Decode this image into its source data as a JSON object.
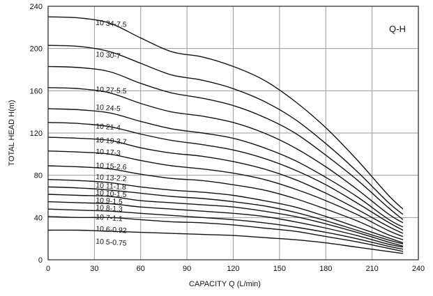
{
  "chart_data": {
    "type": "line",
    "title": "",
    "corner_label": "Q-H",
    "xlabel": "CAPACITY  Q (L/min)",
    "ylabel": "TOTAL HEAD  H(m)",
    "xlim": [
      0,
      240
    ],
    "ylim": [
      0,
      240
    ],
    "x_ticks": [
      "0",
      "30",
      "60",
      "90",
      "120",
      "150",
      "180",
      "210",
      "240"
    ],
    "y_ticks": [
      "0",
      "40",
      "80",
      "120",
      "160",
      "200",
      "240"
    ],
    "grid": true,
    "series": [
      {
        "name": "10 34-7.5",
        "label_at": [
          30,
          225
        ],
        "points": [
          [
            0,
            230
          ],
          [
            20,
            229
          ],
          [
            40,
            224
          ],
          [
            60,
            210
          ],
          [
            80,
            197
          ],
          [
            100,
            192
          ],
          [
            120,
            183
          ],
          [
            140,
            170
          ],
          [
            160,
            150
          ],
          [
            180,
            125
          ],
          [
            200,
            95
          ],
          [
            220,
            62
          ],
          [
            230,
            48
          ]
        ]
      },
      {
        "name": "10 30-7",
        "label_at": [
          30,
          195
        ],
        "points": [
          [
            0,
            203
          ],
          [
            20,
            202
          ],
          [
            40,
            197
          ],
          [
            60,
            186
          ],
          [
            80,
            175
          ],
          [
            100,
            170
          ],
          [
            120,
            162
          ],
          [
            140,
            150
          ],
          [
            160,
            133
          ],
          [
            180,
            110
          ],
          [
            200,
            84
          ],
          [
            220,
            55
          ],
          [
            230,
            43
          ]
        ]
      },
      {
        "name": "10 27-5.5",
        "label_at": [
          30,
          162
        ],
        "points": [
          [
            0,
            183
          ],
          [
            20,
            182
          ],
          [
            40,
            178
          ],
          [
            60,
            167
          ],
          [
            80,
            158
          ],
          [
            100,
            153
          ],
          [
            120,
            146
          ],
          [
            140,
            135
          ],
          [
            160,
            120
          ],
          [
            180,
            99
          ],
          [
            200,
            76
          ],
          [
            220,
            50
          ],
          [
            230,
            38
          ]
        ]
      },
      {
        "name": "10 24-5",
        "label_at": [
          30,
          145
        ],
        "points": [
          [
            0,
            163
          ],
          [
            20,
            162
          ],
          [
            40,
            158
          ],
          [
            60,
            148
          ],
          [
            80,
            140
          ],
          [
            100,
            136
          ],
          [
            120,
            130
          ],
          [
            140,
            120
          ],
          [
            160,
            106
          ],
          [
            180,
            88
          ],
          [
            200,
            67
          ],
          [
            220,
            44
          ],
          [
            230,
            35
          ]
        ]
      },
      {
        "name": "10 21-4",
        "label_at": [
          30,
          127
        ],
        "points": [
          [
            0,
            143
          ],
          [
            20,
            142
          ],
          [
            40,
            139
          ],
          [
            60,
            131
          ],
          [
            80,
            124
          ],
          [
            100,
            120
          ],
          [
            120,
            115
          ],
          [
            140,
            106
          ],
          [
            160,
            94
          ],
          [
            180,
            78
          ],
          [
            200,
            60
          ],
          [
            220,
            39
          ],
          [
            230,
            31
          ]
        ]
      },
      {
        "name": "10 19-3.7",
        "label_at": [
          30,
          114
        ],
        "points": [
          [
            0,
            130
          ],
          [
            20,
            129
          ],
          [
            40,
            126
          ],
          [
            60,
            119
          ],
          [
            80,
            113
          ],
          [
            100,
            109
          ],
          [
            120,
            104
          ],
          [
            140,
            96
          ],
          [
            160,
            85
          ],
          [
            180,
            71
          ],
          [
            200,
            54
          ],
          [
            220,
            36
          ],
          [
            230,
            28
          ]
        ]
      },
      {
        "name": "10 17-3",
        "label_at": [
          30,
          103
        ],
        "points": [
          [
            0,
            116
          ],
          [
            20,
            115
          ],
          [
            40,
            113
          ],
          [
            60,
            106
          ],
          [
            80,
            101
          ],
          [
            100,
            98
          ],
          [
            120,
            93
          ],
          [
            140,
            86
          ],
          [
            160,
            76
          ],
          [
            180,
            63
          ],
          [
            200,
            48
          ],
          [
            220,
            32
          ],
          [
            230,
            25
          ]
        ]
      },
      {
        "name": "10 15-2.6",
        "label_at": [
          30,
          90
        ],
        "points": [
          [
            0,
            103
          ],
          [
            20,
            102
          ],
          [
            40,
            100
          ],
          [
            60,
            94
          ],
          [
            80,
            89
          ],
          [
            100,
            86
          ],
          [
            120,
            82
          ],
          [
            140,
            76
          ],
          [
            160,
            67
          ],
          [
            180,
            56
          ],
          [
            200,
            43
          ],
          [
            220,
            28
          ],
          [
            230,
            22
          ]
        ]
      },
      {
        "name": "10 13-2.2",
        "label_at": [
          30,
          79
        ],
        "points": [
          [
            0,
            89
          ],
          [
            20,
            88
          ],
          [
            40,
            86
          ],
          [
            60,
            81
          ],
          [
            80,
            77
          ],
          [
            100,
            75
          ],
          [
            120,
            71
          ],
          [
            140,
            66
          ],
          [
            160,
            58
          ],
          [
            180,
            48
          ],
          [
            200,
            37
          ],
          [
            220,
            24
          ],
          [
            230,
            19
          ]
        ]
      },
      {
        "name": "10 11-1.8",
        "label_at": [
          30,
          71
        ],
        "points": [
          [
            0,
            76
          ],
          [
            20,
            75
          ],
          [
            40,
            73
          ],
          [
            60,
            69
          ],
          [
            80,
            66
          ],
          [
            100,
            64
          ],
          [
            120,
            61
          ],
          [
            140,
            56
          ],
          [
            160,
            50
          ],
          [
            180,
            41
          ],
          [
            200,
            31
          ],
          [
            220,
            21
          ],
          [
            230,
            16
          ]
        ]
      },
      {
        "name": "10 10-1.5",
        "label_at": [
          30,
          64
        ],
        "points": [
          [
            0,
            69
          ],
          [
            20,
            68
          ],
          [
            40,
            66
          ],
          [
            60,
            63
          ],
          [
            80,
            60
          ],
          [
            100,
            58
          ],
          [
            120,
            55
          ],
          [
            140,
            51
          ],
          [
            160,
            45
          ],
          [
            180,
            37
          ],
          [
            200,
            28
          ],
          [
            220,
            19
          ],
          [
            230,
            15
          ]
        ]
      },
      {
        "name": "10 9-1.5",
        "label_at": [
          30,
          57
        ],
        "points": [
          [
            0,
            62
          ],
          [
            20,
            61
          ],
          [
            40,
            60
          ],
          [
            60,
            56
          ],
          [
            80,
            54
          ],
          [
            100,
            52
          ],
          [
            120,
            50
          ],
          [
            140,
            46
          ],
          [
            160,
            41
          ],
          [
            180,
            34
          ],
          [
            200,
            26
          ],
          [
            220,
            17
          ],
          [
            230,
            13
          ]
        ]
      },
      {
        "name": "10 8-1.3",
        "label_at": [
          30,
          50
        ],
        "points": [
          [
            0,
            55
          ],
          [
            20,
            54
          ],
          [
            40,
            53
          ],
          [
            60,
            50
          ],
          [
            80,
            48
          ],
          [
            100,
            46
          ],
          [
            120,
            44
          ],
          [
            140,
            41
          ],
          [
            160,
            36
          ],
          [
            180,
            30
          ],
          [
            200,
            23
          ],
          [
            220,
            15
          ],
          [
            230,
            12
          ]
        ]
      },
      {
        "name": "10 7-1.1",
        "label_at": [
          30,
          41
        ],
        "points": [
          [
            0,
            48
          ],
          [
            20,
            47
          ],
          [
            40,
            46
          ],
          [
            60,
            44
          ],
          [
            80,
            42
          ],
          [
            100,
            40
          ],
          [
            120,
            38
          ],
          [
            140,
            35
          ],
          [
            160,
            31
          ],
          [
            180,
            26
          ],
          [
            200,
            20
          ],
          [
            220,
            13
          ],
          [
            230,
            10
          ]
        ]
      },
      {
        "name": "10 6-0.92",
        "label_at": [
          30,
          30
        ],
        "points": [
          [
            0,
            41
          ],
          [
            20,
            40
          ],
          [
            40,
            40
          ],
          [
            60,
            38
          ],
          [
            80,
            36
          ],
          [
            100,
            35
          ],
          [
            120,
            33
          ],
          [
            140,
            30
          ],
          [
            160,
            27
          ],
          [
            180,
            22
          ],
          [
            200,
            17
          ],
          [
            220,
            11
          ],
          [
            230,
            8
          ]
        ]
      },
      {
        "name": "10 5-0.75",
        "label_at": [
          30,
          18
        ],
        "points": [
          [
            0,
            28
          ],
          [
            20,
            28
          ],
          [
            40,
            27
          ],
          [
            60,
            26
          ],
          [
            80,
            25
          ],
          [
            100,
            24
          ],
          [
            120,
            23
          ],
          [
            140,
            21
          ],
          [
            160,
            19
          ],
          [
            180,
            16
          ],
          [
            200,
            12
          ],
          [
            220,
            8
          ],
          [
            230,
            6
          ]
        ]
      }
    ]
  }
}
